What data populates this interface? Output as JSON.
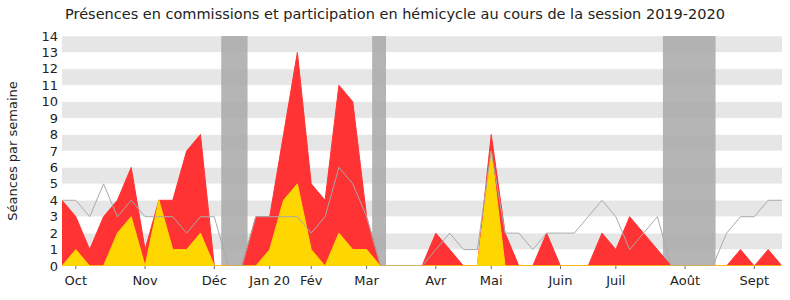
{
  "chart_data": {
    "type": "area",
    "title": "Présences en commissions et participation en hémicycle au cours de la session 2019-2020",
    "y_label": "Séances par semaine",
    "categories": [
      null,
      "Oct",
      null,
      null,
      null,
      null,
      "Nov",
      null,
      null,
      null,
      null,
      "Déc",
      null,
      null,
      null,
      "Jan 20",
      null,
      null,
      "Fév",
      null,
      null,
      null,
      "Mar",
      null,
      null,
      null,
      null,
      "Avr",
      null,
      null,
      null,
      "Mai",
      null,
      null,
      null,
      null,
      "Juin",
      null,
      null,
      null,
      "Juil",
      null,
      null,
      null,
      null,
      "Août",
      null,
      null,
      null,
      null,
      "Sept",
      null,
      null
    ],
    "series": [
      {
        "type": "area",
        "color": "#ff3333",
        "values": [
          4,
          3,
          1,
          3,
          4,
          6,
          1,
          4,
          4,
          7,
          8,
          0,
          0,
          0,
          3,
          3,
          8,
          13,
          5,
          4,
          11,
          10,
          3,
          0,
          0,
          0,
          0,
          2,
          1,
          0,
          0,
          8,
          2,
          0,
          0,
          2,
          0,
          0,
          0,
          2,
          1,
          3,
          2,
          1,
          0,
          0,
          0,
          0,
          0,
          1,
          0,
          1,
          0
        ]
      },
      {
        "type": "area",
        "color": "#ffd700",
        "values": [
          0,
          1,
          0,
          0,
          2,
          3,
          0,
          4,
          1,
          1,
          2,
          0,
          0,
          0,
          0,
          1,
          4,
          5,
          1,
          0,
          2,
          1,
          1,
          0,
          0,
          0,
          0,
          0,
          0,
          0,
          0,
          7,
          0,
          0,
          0,
          0,
          0,
          0,
          0,
          0,
          0,
          0,
          0,
          0,
          0,
          0,
          0,
          0,
          0,
          0,
          0,
          0,
          0
        ]
      },
      {
        "type": "line",
        "color": "#aaaaaa",
        "values": [
          4,
          4,
          3,
          5,
          3,
          4,
          3,
          3,
          3,
          2,
          3,
          3,
          0,
          0,
          3,
          3,
          3,
          3,
          2,
          3,
          6,
          5,
          3,
          0,
          0,
          0,
          0,
          1,
          2,
          1,
          1,
          7,
          2,
          2,
          1,
          2,
          2,
          2,
          3,
          4,
          3,
          1,
          2,
          3,
          0,
          0,
          0,
          0,
          2,
          3,
          3,
          4,
          4
        ]
      }
    ],
    "shaded_weeks": [
      [
        11.5,
        13.4
      ],
      [
        22.4,
        23.4
      ],
      [
        43.4,
        47.2
      ]
    ],
    "ylim": [
      0,
      14
    ],
    "yticks": [
      0,
      1,
      2,
      3,
      4,
      5,
      6,
      7,
      8,
      9,
      10,
      11,
      12,
      13,
      14
    ],
    "grid": true
  }
}
